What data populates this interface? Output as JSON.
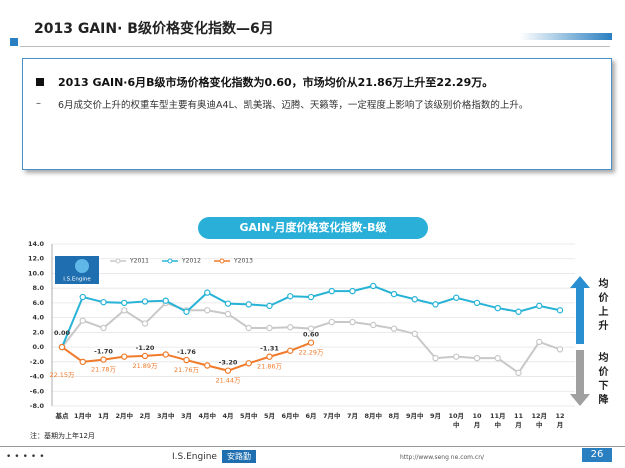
{
  "header": {
    "title": "2013 GAIN· B级价格变化指数—6月"
  },
  "summary": {
    "bullet": "2013 GAIN·6月B级市场价格变化指数为0.60，市场均价从21.86万上升至22.29万。",
    "detail": "6月成交价上升的权重车型主要有奥迪A4L、凯美瑞、迈腾、天籁等，一定程度上影响了该级别价格指数的上升。"
  },
  "chart_data": {
    "type": "line",
    "title": "GAIN·月度价格变化指数-B级",
    "logo": "I.S.Engine",
    "categories": [
      "基点",
      "1月中",
      "1月",
      "2月中",
      "2月",
      "3月中",
      "3月",
      "4月中",
      "4月",
      "5月中",
      "5月",
      "6月中",
      "6月",
      "7月中",
      "7月",
      "8月中",
      "8月",
      "9月中",
      "9月",
      "10月中",
      "10月",
      "11月中",
      "11月",
      "12月中",
      "12月"
    ],
    "series": [
      {
        "name": "Y2011",
        "color": "#c8c8c8",
        "values": [
          0,
          3.6,
          2.6,
          5.0,
          3.2,
          6.0,
          5.0,
          5.0,
          4.5,
          2.6,
          2.6,
          2.7,
          2.5,
          3.4,
          3.4,
          3.0,
          2.5,
          1.8,
          -1.5,
          -1.3,
          -1.5,
          -1.5,
          -3.5,
          0.7,
          -0.3
        ]
      },
      {
        "name": "Y2012",
        "color": "#27b3d6",
        "values": [
          0,
          6.8,
          6.1,
          6.0,
          6.2,
          6.3,
          4.8,
          7.4,
          5.9,
          5.8,
          5.6,
          6.9,
          6.8,
          7.6,
          7.6,
          8.3,
          7.2,
          6.5,
          5.8,
          6.7,
          6.0,
          5.3,
          4.8,
          5.6,
          5.0
        ]
      },
      {
        "name": "Y2013",
        "color": "#f07a2a",
        "values": [
          0,
          -2.0,
          -1.7,
          -1.3,
          -1.2,
          -1.0,
          -1.76,
          -2.5,
          -3.2,
          -2.2,
          -1.31,
          -0.5,
          0.6,
          null,
          null,
          null,
          null,
          null,
          null,
          null,
          null,
          null,
          null,
          null,
          null
        ],
        "value_labels": [
          "0.00",
          null,
          "-1.70",
          null,
          "-1.20",
          null,
          "-1.76",
          null,
          "-3.20",
          null,
          "-1.31",
          null,
          "0.60",
          null,
          null,
          null,
          null,
          null,
          null,
          null,
          null,
          null,
          null,
          null,
          null
        ],
        "price_labels": [
          "22.15万",
          null,
          "21.78万",
          null,
          "21.89万",
          null,
          "21.76万",
          null,
          "21.44万",
          null,
          "21.86万",
          null,
          "22.29万",
          null,
          null,
          null,
          null,
          null,
          null,
          null,
          null,
          null,
          null,
          null,
          null
        ]
      }
    ],
    "ylim": [
      -8,
      14
    ],
    "yticks": [
      {
        "value": -8,
        "label": "-8.0"
      },
      {
        "value": -6,
        "label": "-6.0"
      },
      {
        "value": -4,
        "label": "-4.0"
      },
      {
        "value": -2,
        "label": "-2.0"
      },
      {
        "value": 0,
        "label": "0.0"
      },
      {
        "value": 2,
        "label": "2.0"
      },
      {
        "value": 4,
        "label": "4.0"
      },
      {
        "value": 6,
        "label": "6.0"
      },
      {
        "value": 8,
        "label": "8.0"
      },
      {
        "value": 10,
        "label": "10.0"
      },
      {
        "value": 12,
        "label": "12.0"
      },
      {
        "value": 14,
        "label": "14.0"
      }
    ],
    "grid": true,
    "up_label": "均价上升",
    "down_label": "均价下降",
    "note": "注：基期为上年12月"
  },
  "footer": {
    "brand": "I.S.Engine",
    "brand_cn": "安路勤",
    "url": "http://www.seng ne.com.cn/",
    "page": "26"
  }
}
